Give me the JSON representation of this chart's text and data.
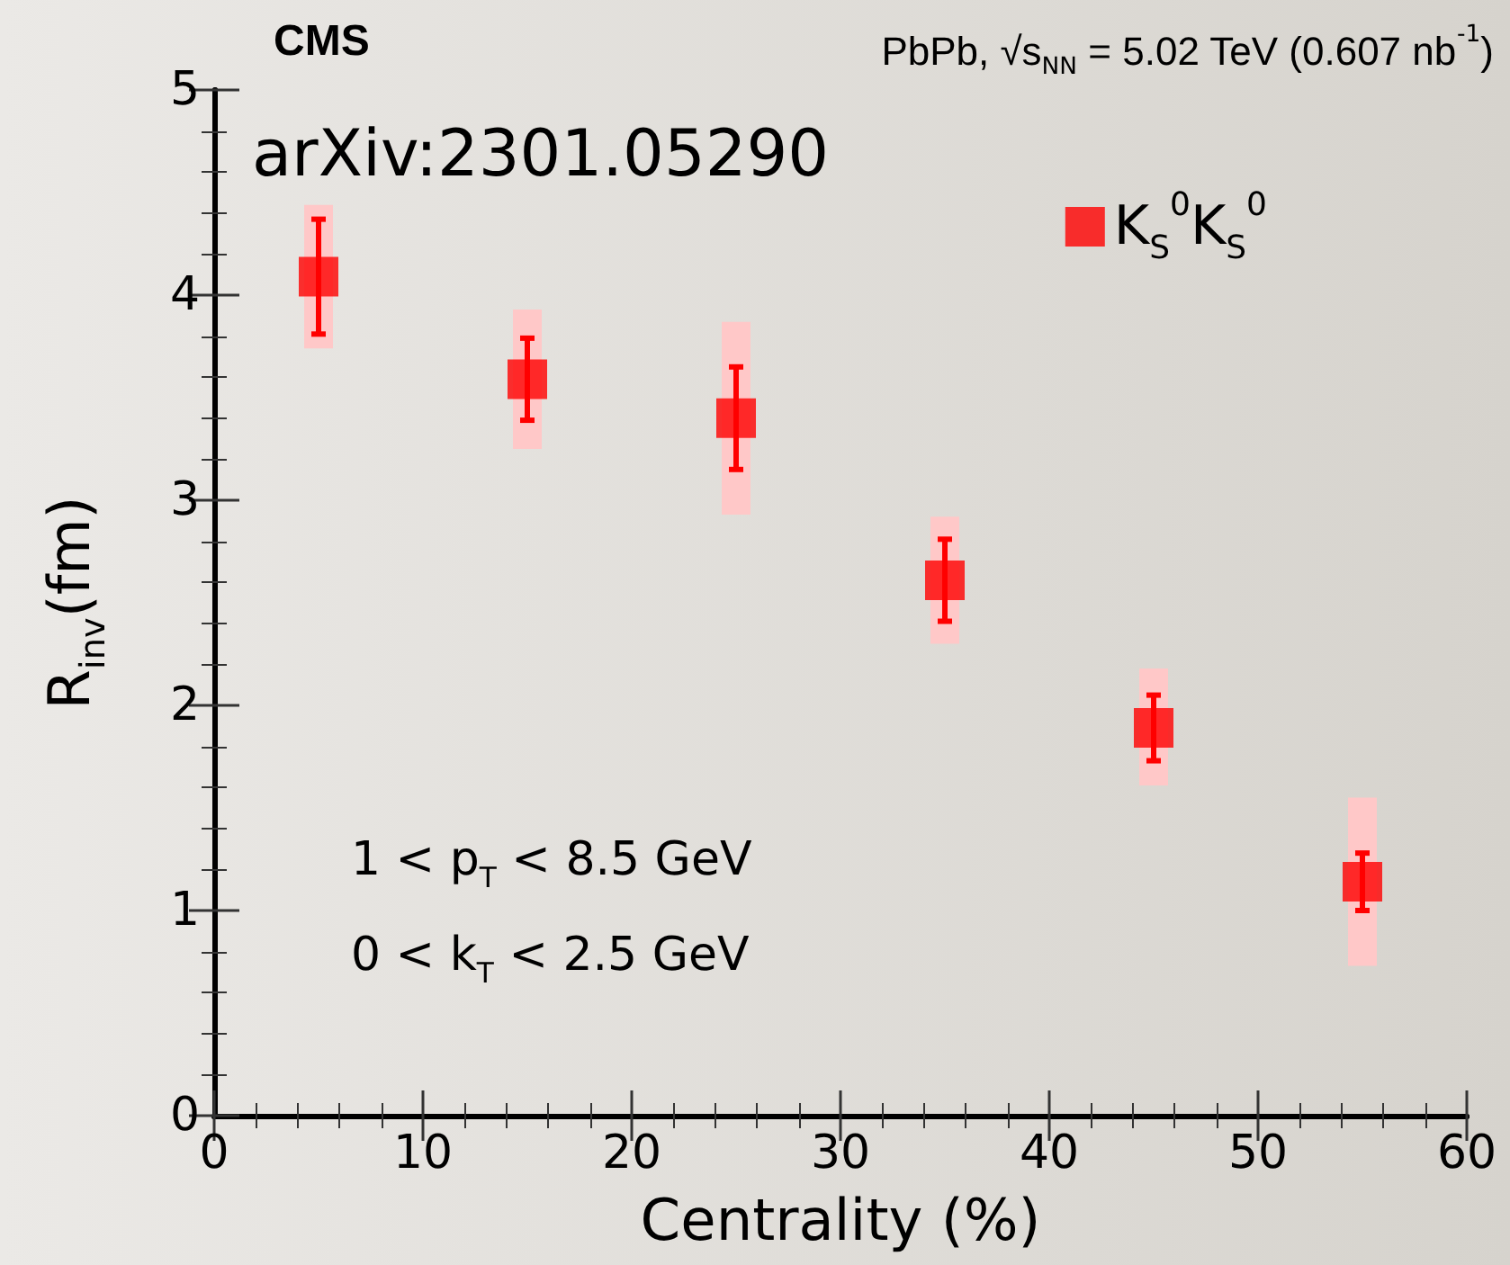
{
  "chart_data": {
    "type": "scatter",
    "title": "CMS",
    "subtitle": "PbPb, √s$_{NN}$ = 5.02 TeV (0.607 nb$^{-1}$)",
    "xlabel": "Centrality (%)",
    "ylabel": "R$_{inv}$(fm)",
    "annotations": [
      "arXiv:2301.05290",
      "1 < p$_{T}$ < 8.5 GeV",
      "0 < k$_{T}$ < 2.5 GeV"
    ],
    "x": [
      5,
      15,
      25,
      35,
      45,
      55
    ],
    "series": [
      {
        "type": "bar",
        "color": "#ffc8c8",
        "base": [
          3.74,
          3.25,
          2.93,
          2.3,
          1.61,
          0.73
        ],
        "values": [
          0.7,
          0.68,
          0.94,
          0.62,
          0.57,
          0.82
        ]
      },
      {
        "name": "K$_{S}$$^{0}$K$_{S}$$^{0}$",
        "color": "#ff0000",
        "values": [
          4.09,
          3.59,
          3.4,
          2.61,
          1.89,
          1.14
        ],
        "errors": [
          0.28,
          0.2,
          0.25,
          0.2,
          0.16,
          0.14
        ]
      }
    ],
    "xlim": [
      0,
      60
    ],
    "xticks": [
      0,
      10,
      20,
      30,
      40,
      50,
      60
    ],
    "ylim": [
      0,
      5
    ],
    "yticks": [
      0,
      1,
      2,
      3,
      4,
      5
    ],
    "legend": "top right",
    "marker": "square"
  }
}
